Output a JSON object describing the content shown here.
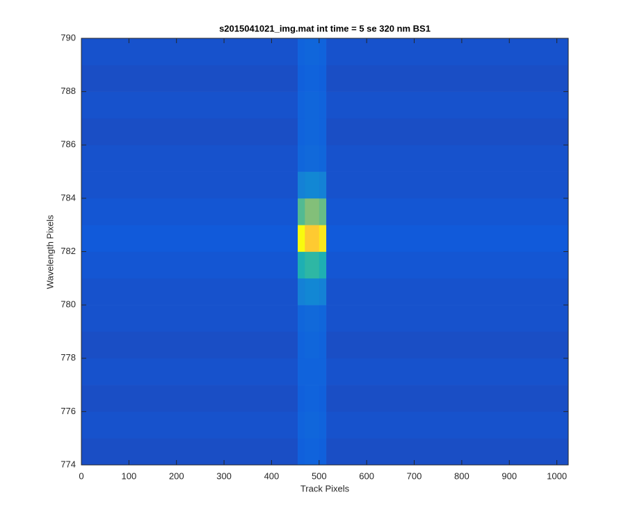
{
  "chart_data": {
    "type": "heatmap",
    "title": "s2015041021_img.mat int time = 5 se  320 nm BS1",
    "x_label": "Track Pixels",
    "y_label": "Wavelength Pixels",
    "x_edges": [
      0,
      455,
      470,
      500,
      515,
      1024
    ],
    "y_edges": [
      774,
      775,
      776,
      777,
      778,
      779,
      780,
      781,
      782,
      783,
      784,
      785,
      786,
      787,
      788,
      789,
      790
    ],
    "z": [
      [
        0.09,
        0.14,
        0.15,
        0.14,
        0.09
      ],
      [
        0.1,
        0.15,
        0.16,
        0.15,
        0.1
      ],
      [
        0.09,
        0.14,
        0.15,
        0.14,
        0.09
      ],
      [
        0.1,
        0.15,
        0.15,
        0.15,
        0.1
      ],
      [
        0.09,
        0.15,
        0.16,
        0.15,
        0.09
      ],
      [
        0.1,
        0.16,
        0.17,
        0.16,
        0.1
      ],
      [
        0.1,
        0.25,
        0.27,
        0.25,
        0.1
      ],
      [
        0.11,
        0.45,
        0.5,
        0.45,
        0.11
      ],
      [
        0.12,
        1.0,
        0.88,
        0.95,
        0.12
      ],
      [
        0.11,
        0.55,
        0.62,
        0.58,
        0.11
      ],
      [
        0.1,
        0.25,
        0.27,
        0.25,
        0.1
      ],
      [
        0.1,
        0.16,
        0.17,
        0.16,
        0.1
      ],
      [
        0.09,
        0.15,
        0.16,
        0.15,
        0.09
      ],
      [
        0.1,
        0.15,
        0.16,
        0.15,
        0.1
      ],
      [
        0.09,
        0.14,
        0.15,
        0.14,
        0.09
      ],
      [
        0.1,
        0.15,
        0.16,
        0.15,
        0.1
      ]
    ],
    "clim": [
      0,
      1
    ],
    "colormap": [
      "#352a87",
      "#0f5cdd",
      "#1481d6",
      "#06a4ca",
      "#2eb7a4",
      "#87bf77",
      "#d1bb59",
      "#fec832",
      "#f9fb0e"
    ],
    "xlim": [
      0,
      1024
    ],
    "ylim": [
      774,
      790
    ],
    "xticks": [
      0,
      100,
      200,
      300,
      400,
      500,
      600,
      700,
      800,
      900,
      1000
    ],
    "yticks": [
      774,
      776,
      778,
      780,
      782,
      784,
      786,
      788,
      790
    ]
  }
}
